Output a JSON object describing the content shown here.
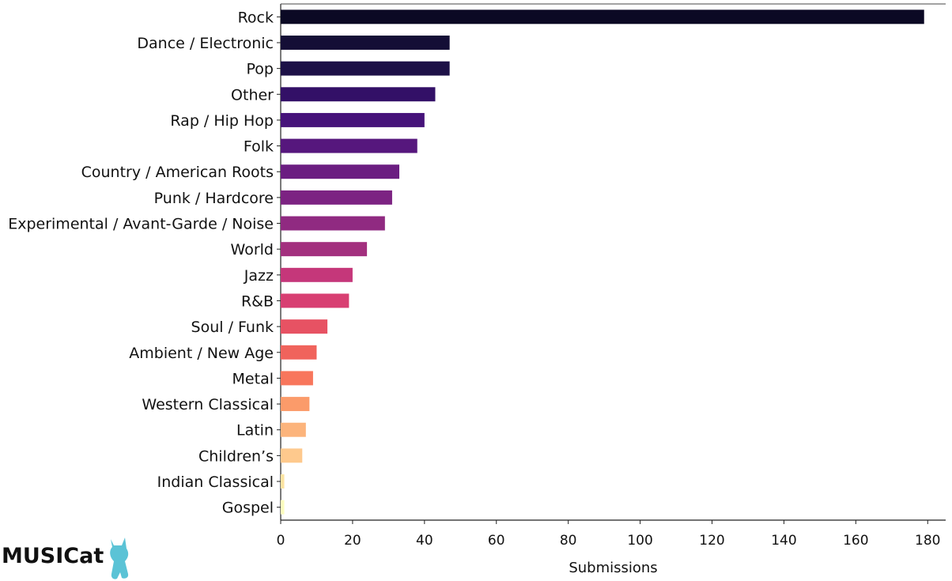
{
  "chart_data": {
    "type": "bar",
    "orientation": "horizontal",
    "categories": [
      "Rock",
      "Dance / Electronic",
      "Pop",
      "Other",
      "Rap / Hip Hop",
      "Folk",
      "Country / American Roots",
      "Punk / Hardcore",
      "Experimental / Avant-Garde / Noise",
      "World",
      "Jazz",
      "R&B",
      "Soul / Funk",
      "Ambient / New Age",
      "Metal",
      "Western Classical",
      "Latin",
      "Children’s",
      "Indian Classical",
      "Gospel"
    ],
    "values": [
      179,
      47,
      47,
      43,
      40,
      38,
      33,
      31,
      29,
      24,
      20,
      19,
      13,
      10,
      9,
      8,
      7,
      6,
      1,
      1
    ],
    "colors": [
      "#0b0924",
      "#140e36",
      "#1d1147",
      "#331067",
      "#46137a",
      "#56177d",
      "#6b1d81",
      "#7c2382",
      "#902a81",
      "#a3307e",
      "#c5377a",
      "#d83f72",
      "#e75263",
      "#f0635c",
      "#f8765c",
      "#fb9b6a",
      "#fcb47c",
      "#fec98d",
      "#fde4a2",
      "#fcfdbf"
    ],
    "title": "",
    "xlabel": "Submissions",
    "ylabel": "",
    "xlim": [
      0,
      185
    ],
    "xticks": [
      0,
      20,
      40,
      60,
      80,
      100,
      120,
      140,
      160,
      180
    ],
    "grid": false
  },
  "logo": {
    "text": "MUSICat",
    "cat_color": "#5bc3d6"
  }
}
